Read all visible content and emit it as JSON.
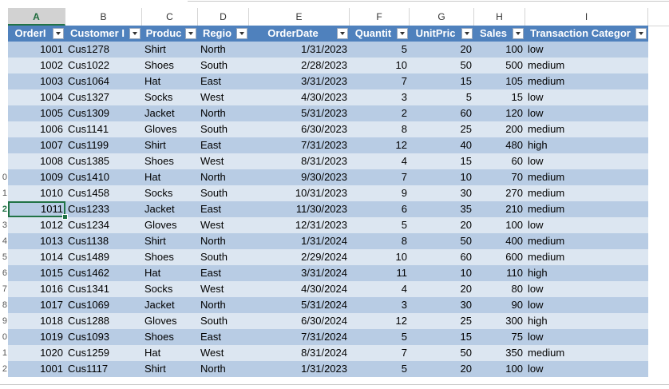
{
  "column_letters": [
    "A",
    "B",
    "C",
    "D",
    "E",
    "F",
    "G",
    "H",
    "I"
  ],
  "active_column": "A",
  "row_numbers": [
    "",
    "",
    "",
    "",
    "",
    "",
    "",
    "",
    "",
    "",
    "0",
    "1",
    "2",
    "3",
    "4",
    "5",
    "6",
    "7",
    "8",
    "9",
    "0",
    "1",
    "2"
  ],
  "active_row_label": "2",
  "table": {
    "headers": [
      "OrderI",
      "Customer I",
      "Produc",
      "Regio",
      "OrderDate",
      "Quantit",
      "UnitPric",
      "Sales",
      "Transaction Categor"
    ],
    "rows": [
      [
        "1001",
        "Cus1278",
        "Shirt",
        "North",
        "1/31/2023",
        "5",
        "20",
        "100",
        "low"
      ],
      [
        "1002",
        "Cus1022",
        "Shoes",
        "South",
        "2/28/2023",
        "10",
        "50",
        "500",
        "medium"
      ],
      [
        "1003",
        "Cus1064",
        "Hat",
        "East",
        "3/31/2023",
        "7",
        "15",
        "105",
        "medium"
      ],
      [
        "1004",
        "Cus1327",
        "Socks",
        "West",
        "4/30/2023",
        "3",
        "5",
        "15",
        "low"
      ],
      [
        "1005",
        "Cus1309",
        "Jacket",
        "North",
        "5/31/2023",
        "2",
        "60",
        "120",
        "low"
      ],
      [
        "1006",
        "Cus1141",
        "Gloves",
        "South",
        "6/30/2023",
        "8",
        "25",
        "200",
        "medium"
      ],
      [
        "1007",
        "Cus1199",
        "Shirt",
        "East",
        "7/31/2023",
        "12",
        "40",
        "480",
        "high"
      ],
      [
        "1008",
        "Cus1385",
        "Shoes",
        "West",
        "8/31/2023",
        "4",
        "15",
        "60",
        "low"
      ],
      [
        "1009",
        "Cus1410",
        "Hat",
        "North",
        "9/30/2023",
        "7",
        "10",
        "70",
        "medium"
      ],
      [
        "1010",
        "Cus1458",
        "Socks",
        "South",
        "10/31/2023",
        "9",
        "30",
        "270",
        "medium"
      ],
      [
        "1011",
        "Cus1233",
        "Jacket",
        "East",
        "11/30/2023",
        "6",
        "35",
        "210",
        "medium"
      ],
      [
        "1012",
        "Cus1234",
        "Gloves",
        "West",
        "12/31/2023",
        "5",
        "20",
        "100",
        "low"
      ],
      [
        "1013",
        "Cus1138",
        "Shirt",
        "North",
        "1/31/2024",
        "8",
        "50",
        "400",
        "medium"
      ],
      [
        "1014",
        "Cus1489",
        "Shoes",
        "South",
        "2/29/2024",
        "10",
        "60",
        "600",
        "medium"
      ],
      [
        "1015",
        "Cus1462",
        "Hat",
        "East",
        "3/31/2024",
        "11",
        "10",
        "110",
        "high"
      ],
      [
        "1016",
        "Cus1341",
        "Socks",
        "West",
        "4/30/2024",
        "4",
        "20",
        "80",
        "low"
      ],
      [
        "1017",
        "Cus1069",
        "Jacket",
        "North",
        "5/31/2024",
        "3",
        "30",
        "90",
        "low"
      ],
      [
        "1018",
        "Cus1288",
        "Gloves",
        "South",
        "6/30/2024",
        "12",
        "25",
        "300",
        "high"
      ],
      [
        "1019",
        "Cus1093",
        "Shoes",
        "East",
        "7/31/2024",
        "5",
        "15",
        "75",
        "low"
      ],
      [
        "1020",
        "Cus1259",
        "Hat",
        "West",
        "8/31/2024",
        "7",
        "50",
        "350",
        "medium"
      ],
      [
        "1001",
        "Cus1117",
        "Shirt",
        "North",
        "1/31/2023",
        "5",
        "20",
        "100",
        "low"
      ]
    ]
  },
  "colors": {
    "header_fill": "#4f81bd",
    "band_dark": "#b8cce4",
    "band_light": "#dce6f1",
    "selection": "#217346"
  }
}
